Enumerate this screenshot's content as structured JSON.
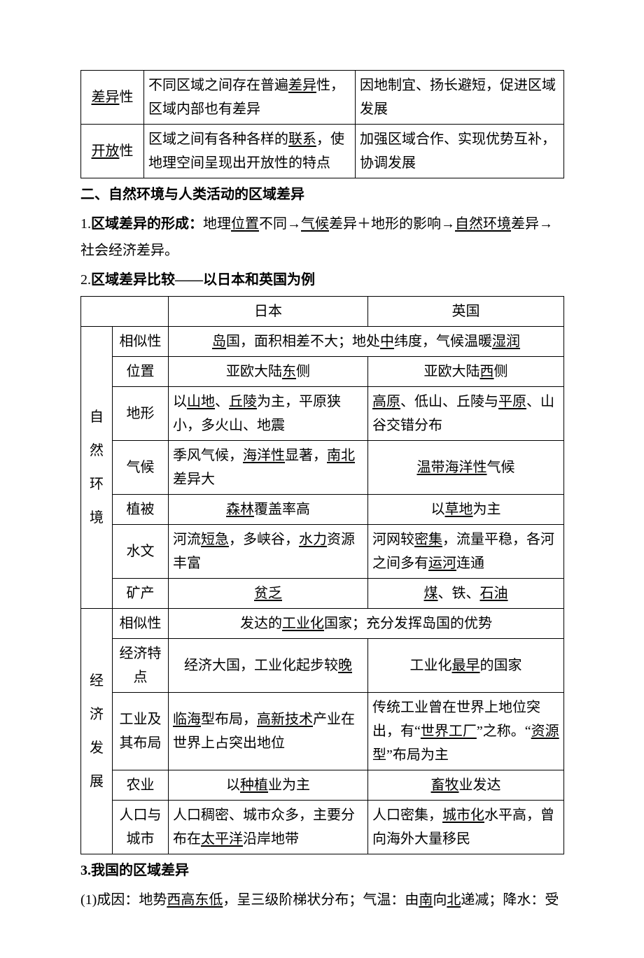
{
  "table1": {
    "cols": [
      "90",
      "300",
      "300"
    ],
    "rows": [
      {
        "c0_html": "<span class='u'>差异</span>性",
        "c1_html": "不同区域之间存在普遍<span class='u'>差异</span>性，区域内部也有差异",
        "c2_html": "因地制宜、扬长避短，促进区域发展"
      },
      {
        "c0_html": "<span class='u'>开放</span>性",
        "c1_html": "区域之间有各种各样的<span class='u'>联系</span>，使地理空间呈现出开放性的特点",
        "c2_html": "加强区域合作、实现优势互补，协调发展"
      }
    ]
  },
  "sec2_heading": "二、自然环境与人类活动的区域差异",
  "sec2_line1_html": "1.<b>区域差异的形成：</b>地理<span class='u'>位置</span>不同→<span class='u'>气候</span>差异＋地形的影响→<span class='u'>自然环境</span>差异→社会经济差异。",
  "sec2_line2_html": "2.<b>区域差异比较——以日本和英国为例</b>",
  "table2": {
    "cols": [
      "45",
      "80",
      "285",
      "280"
    ],
    "header": {
      "jp": "日本",
      "uk": "英国"
    },
    "nat_label": "自然环境",
    "eco_label": "经济发展",
    "rows": [
      {
        "label": "相似性",
        "span_html": "<span class='u'>岛</span>国，面积相差不大；地处<span class='u'>中</span>纬度，气候温暖<span class='u'>湿润</span>"
      },
      {
        "label": "位置",
        "jp_html": "亚欧大陆<span class='u'>东</span>侧",
        "uk_html": "亚欧大陆<span class='u'>西</span>侧",
        "jp_center": true,
        "uk_center": true
      },
      {
        "label": "地形",
        "jp_html": "以<span class='u'>山地</span>、<span class='u'>丘陵</span>为主，平原狭小，多火山、地震",
        "uk_html": "<span class='u'>高原</span>、低山、丘陵与<span class='u'>平原</span>、山谷交错分布"
      },
      {
        "label": "气候",
        "jp_html": "季风气候，<span class='u'>海洋性</span>显著，<span class='u'>南北</span>差异大",
        "uk_html": "<span class='u'>温带海洋性</span>气候",
        "uk_center": true
      },
      {
        "label": "植被",
        "jp_html": "<span class='u'>森林</span>覆盖率高",
        "uk_html": "以<span class='u'>草地</span>为主",
        "jp_center": true,
        "uk_center": true
      },
      {
        "label": "水文",
        "jp_html": "河流<span class='u'>短急</span>，多峡谷，<span class='u'>水力</span>资源丰富",
        "uk_html": "河网较<span class='u'>密集</span>，流量平稳，各河之间多有<span class='u'>运河</span>连通"
      },
      {
        "label": "矿产",
        "jp_html": "<span class='u'>贫乏</span>",
        "uk_html": "<span class='u'>煤</span>、铁、<span class='u'>石油</span>",
        "jp_center": true,
        "uk_center": true
      },
      {
        "label": "相似性",
        "span_html": "发达的<span class='u'>工业化</span>国家；充分发挥岛国的优势"
      },
      {
        "label": "经济特点",
        "jp_html": "经济大国，工业化起步较<span class='u'>晚</span>",
        "uk_html": "工业化<span class='u'>最早</span>的国家",
        "jp_center": true,
        "uk_center": true
      },
      {
        "label": "工业及其布局",
        "jp_html": "<span class='u'>临海</span>型布局，<span class='u'>高新技术</span>产业在世界上占突出地位",
        "uk_html": "传统工业曾在世界上地位突出，有“<span class='u'>世界工厂</span>”之称。“<span class='u'>资源</span>型”布局为主"
      },
      {
        "label": "农业",
        "jp_html": "以<span class='u'>种植</span>业为主",
        "uk_html": "<span class='u'>畜牧</span>业发达",
        "jp_center": true,
        "uk_center": true
      },
      {
        "label": "人口与城市",
        "jp_html": "人口稠密、城市众多，主要分布在<span class='u'>太平洋</span>沿岸地带",
        "uk_html": "人口密集，<span class='u'>城市化</span>水平高，曾向海外大量移民"
      }
    ]
  },
  "sec3_heading": "3.我国的区域差异",
  "sec3_line_html": "(1)成因：地势<span class='u'>西高东低</span>，呈三级阶梯状分布；气温：由<span class='u'>南</span>向<span class='u'>北</span>递减；降水：受"
}
